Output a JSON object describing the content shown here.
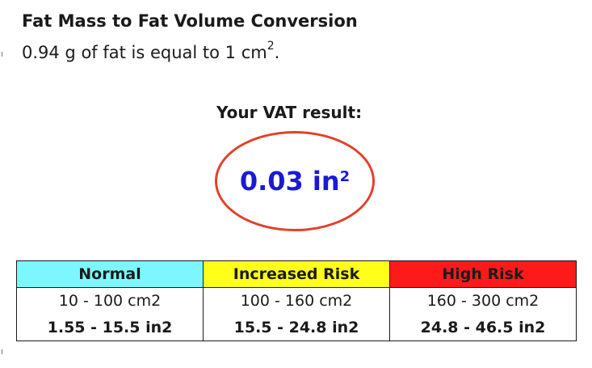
{
  "heading": "Fat Mass to Fat Volume Conversion",
  "conversion": {
    "text_before": "0.94 g of fat is equal to 1 cm",
    "superscript": "2",
    "text_after": "."
  },
  "result": {
    "label": "Your VAT result:",
    "value": "0.03 in",
    "superscript": "2",
    "value_color": "#1a1ad6",
    "circle_color": "#e2412b"
  },
  "risk_table": {
    "headers": [
      {
        "label": "Normal",
        "color": "#7df7ff"
      },
      {
        "label": "Increased Risk",
        "color": "#ffff1a"
      },
      {
        "label": "High Risk",
        "color": "#ff1a1a"
      }
    ],
    "rows": [
      [
        "10 - 100 cm2",
        "100 - 160 cm2",
        "160 - 300 cm2"
      ],
      [
        "1.55 - 15.5 in2",
        "15.5 - 24.8 in2",
        "24.8 - 46.5 in2"
      ]
    ]
  }
}
